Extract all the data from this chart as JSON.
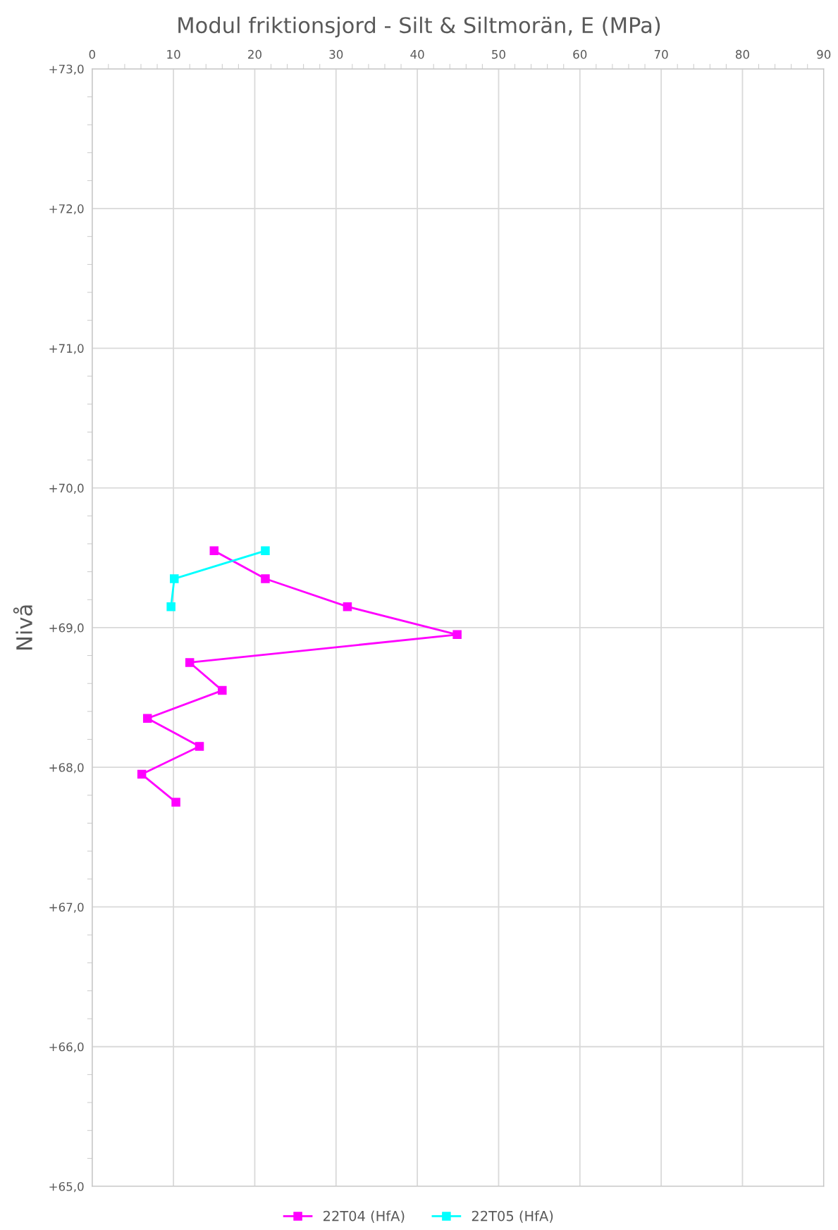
{
  "chart_data": {
    "type": "line",
    "title": "Modul friktionsjord - Silt & Siltmorän, E (MPa)",
    "ylabel": "Nivå",
    "xlim": [
      0,
      90
    ],
    "xticks": [
      0,
      10,
      20,
      30,
      40,
      50,
      60,
      70,
      80,
      90
    ],
    "ylim": [
      65,
      73
    ],
    "yticks": [
      {
        "value": 65,
        "label": "+65,0"
      },
      {
        "value": 66,
        "label": "+66,0"
      },
      {
        "value": 67,
        "label": "+67,0"
      },
      {
        "value": 68,
        "label": "+68,0"
      },
      {
        "value": 69,
        "label": "+69,0"
      },
      {
        "value": 70,
        "label": "+70,0"
      },
      {
        "value": 71,
        "label": "+71,0"
      },
      {
        "value": 72,
        "label": "+72,0"
      },
      {
        "value": 73,
        "label": "+73,0"
      }
    ],
    "grid": true,
    "legend": "bottom",
    "marker": "square",
    "line_style": "solid",
    "series": [
      {
        "name": "22T04 (HfA)",
        "color": "#ff00ff",
        "x": [
          15.0,
          21.3,
          31.4,
          44.9,
          12.0,
          16.0,
          6.8,
          13.2,
          6.1,
          10.3
        ],
        "values": [
          69.55,
          69.35,
          69.15,
          68.95,
          68.75,
          68.55,
          68.35,
          68.15,
          67.95,
          67.75
        ]
      },
      {
        "name": "22T05 (HfA)",
        "color": "#00ffff",
        "x": [
          21.3,
          10.1,
          9.7
        ],
        "values": [
          69.55,
          69.35,
          69.15
        ]
      }
    ]
  }
}
